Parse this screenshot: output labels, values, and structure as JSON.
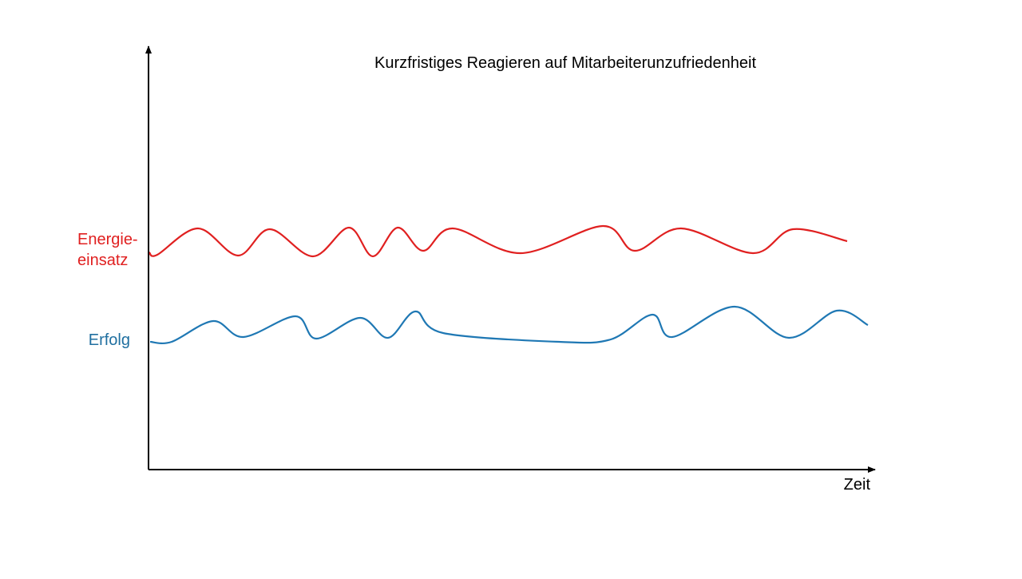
{
  "title": "Kurzfristiges Reagieren auf Mitarbeiterunzufriedenheit",
  "y_labels": {
    "energy": [
      "Energie-",
      "einsatz"
    ],
    "success": "Erfolg"
  },
  "x_label": "Zeit"
}
